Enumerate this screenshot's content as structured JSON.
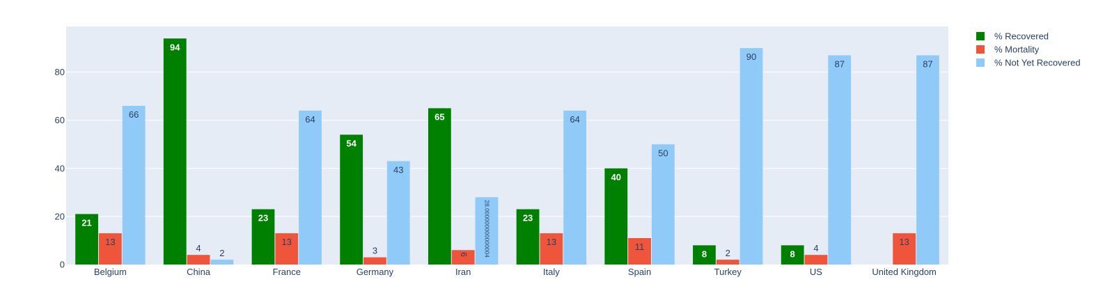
{
  "chart_data": {
    "type": "bar",
    "categories": [
      "Belgium",
      "China",
      "France",
      "Germany",
      "Iran",
      "Italy",
      "Spain",
      "Turkey",
      "US",
      "United Kingdom"
    ],
    "series": [
      {
        "name": "% Recovered",
        "color": "#008000",
        "values": [
          21,
          94,
          23,
          54,
          65,
          23,
          40,
          8,
          8,
          0
        ],
        "labels": [
          "21",
          "94",
          "23",
          "54",
          "65",
          "23",
          "40",
          "8",
          "8",
          ""
        ]
      },
      {
        "name": "% Mortality",
        "color": "#ef553b",
        "values": [
          13,
          4,
          13,
          3,
          6,
          13,
          11,
          2,
          4,
          13
        ],
        "labels": [
          "13",
          "4",
          "13",
          "3",
          "6",
          "13",
          "11",
          "2",
          "4",
          "13"
        ]
      },
      {
        "name": "% Not Yet Recovered",
        "color": "#90caf9",
        "values": [
          66,
          2,
          64,
          43,
          28,
          64,
          50,
          90,
          87,
          87
        ],
        "labels": [
          "66",
          "2",
          "64",
          "43",
          "28.000000000000004",
          "64",
          "50",
          "90",
          "87",
          "87"
        ]
      }
    ],
    "yticks": [
      0,
      20,
      40,
      60,
      80
    ],
    "ylim": [
      0,
      99
    ],
    "grid": true,
    "legend_position": "top-right",
    "plot_background": "#e5ecf6"
  }
}
